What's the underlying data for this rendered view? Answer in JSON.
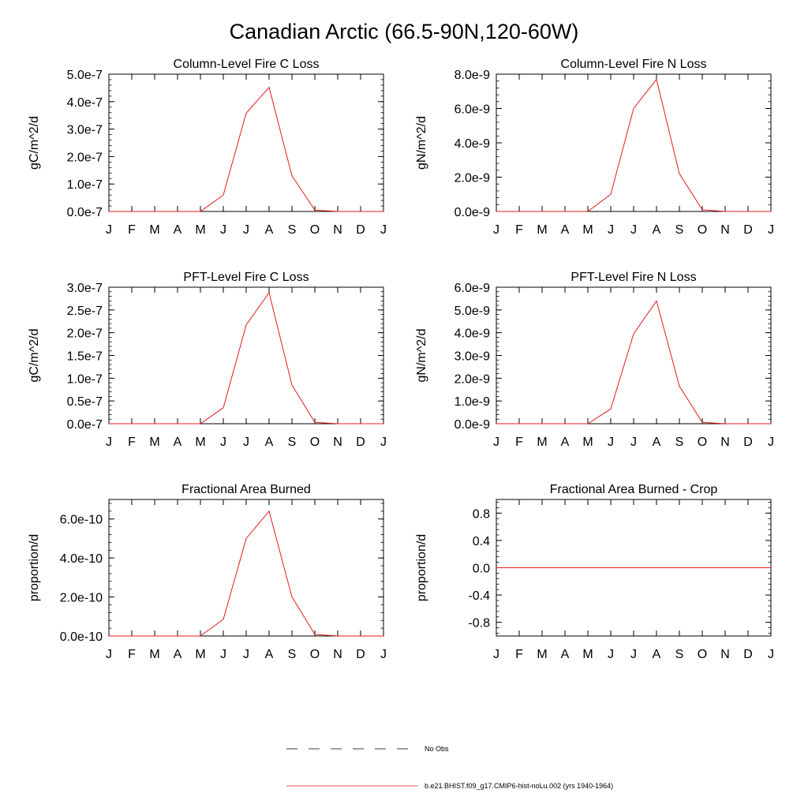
{
  "figure_title": "Canadian Arctic (66.5-90N,120-60W)",
  "legend": {
    "items": [
      {
        "label": "No Obs",
        "style": "dashed",
        "color": "#000000"
      },
      {
        "label": "b.e21.BHIST.f09_g17.CMIP6-hist-noLu.002 (yrs 1940-1964)",
        "style": "solid",
        "color": "#e31a1c"
      }
    ]
  },
  "chart_data": [
    {
      "type": "line",
      "title": "Column-Level Fire C Loss",
      "ylabel": "gC/m^2/d",
      "categories": [
        "J",
        "F",
        "M",
        "A",
        "M",
        "J",
        "J",
        "A",
        "S",
        "O",
        "N",
        "D",
        "J"
      ],
      "ylim": [
        0,
        5e-07
      ],
      "yticks": [
        0,
        1e-07,
        2e-07,
        3e-07,
        4e-07,
        5e-07
      ],
      "ytick_labels": [
        "0.0e-7",
        "1.0e-7",
        "2.0e-7",
        "3.0e-7",
        "4.0e-7",
        "5.0e-7"
      ],
      "series": [
        {
          "color": "#e31a1c",
          "values": [
            0,
            0,
            0,
            0,
            0,
            6e-08,
            3.58e-07,
            4.52e-07,
            1.3e-07,
            5e-09,
            0,
            0,
            0
          ]
        }
      ]
    },
    {
      "type": "line",
      "title": "Column-Level Fire N Loss",
      "ylabel": "gN/m^2/d",
      "categories": [
        "J",
        "F",
        "M",
        "A",
        "M",
        "J",
        "J",
        "A",
        "S",
        "O",
        "N",
        "D",
        "J"
      ],
      "ylim": [
        0,
        8e-09
      ],
      "yticks": [
        0,
        2e-09,
        4e-09,
        6e-09,
        8e-09
      ],
      "ytick_labels": [
        "0.0e-9",
        "2.0e-9",
        "4.0e-9",
        "6.0e-9",
        "8.0e-9"
      ],
      "series": [
        {
          "color": "#e31a1c",
          "values": [
            0,
            0,
            0,
            0,
            0,
            1e-09,
            6e-09,
            7.7e-09,
            2.2e-09,
            1e-10,
            0,
            0,
            0
          ]
        }
      ]
    },
    {
      "type": "line",
      "title": "PFT-Level Fire C Loss",
      "ylabel": "gC/m^2/d",
      "categories": [
        "J",
        "F",
        "M",
        "A",
        "M",
        "J",
        "J",
        "A",
        "S",
        "O",
        "N",
        "D",
        "J"
      ],
      "ylim": [
        0,
        3e-07
      ],
      "yticks": [
        0,
        5e-08,
        1e-07,
        1.5e-07,
        2e-07,
        2.5e-07,
        3e-07
      ],
      "ytick_labels": [
        "0.0e-7",
        "0.5e-7",
        "1.0e-7",
        "1.5e-7",
        "2.0e-7",
        "2.5e-7",
        "3.0e-7"
      ],
      "series": [
        {
          "color": "#e31a1c",
          "values": [
            0,
            0,
            0,
            0,
            0,
            3.5e-08,
            2.17e-07,
            2.88e-07,
            8.5e-08,
            3e-09,
            0,
            0,
            0
          ]
        }
      ]
    },
    {
      "type": "line",
      "title": "PFT-Level Fire N Loss",
      "ylabel": "gN/m^2/d",
      "categories": [
        "J",
        "F",
        "M",
        "A",
        "M",
        "J",
        "J",
        "A",
        "S",
        "O",
        "N",
        "D",
        "J"
      ],
      "ylim": [
        0,
        6e-09
      ],
      "yticks": [
        0,
        1e-09,
        2e-09,
        3e-09,
        4e-09,
        5e-09,
        6e-09
      ],
      "ytick_labels": [
        "0.0e-9",
        "1.0e-9",
        "2.0e-9",
        "3.0e-9",
        "4.0e-9",
        "5.0e-9",
        "6.0e-9"
      ],
      "series": [
        {
          "color": "#e31a1c",
          "values": [
            0,
            0,
            0,
            0,
            0,
            6.5e-10,
            3.95e-09,
            5.4e-09,
            1.65e-09,
            6e-11,
            0,
            0,
            0
          ]
        }
      ]
    },
    {
      "type": "line",
      "title": "Fractional Area Burned",
      "ylabel": "proportion/d",
      "categories": [
        "J",
        "F",
        "M",
        "A",
        "M",
        "J",
        "J",
        "A",
        "S",
        "O",
        "N",
        "D",
        "J"
      ],
      "ylim": [
        0,
        7e-10
      ],
      "yticks": [
        0,
        2e-10,
        4e-10,
        6e-10
      ],
      "ytick_labels": [
        "0.0e-10",
        "2.0e-10",
        "4.0e-10",
        "6.0e-10"
      ],
      "series": [
        {
          "color": "#e31a1c",
          "values": [
            0,
            0,
            0,
            0,
            0,
            8.5e-11,
            5e-10,
            6.4e-10,
            2e-10,
            8e-12,
            0,
            0,
            0
          ]
        }
      ]
    },
    {
      "type": "line",
      "title": "Fractional Area Burned - Crop",
      "ylabel": "proportion/d",
      "categories": [
        "J",
        "F",
        "M",
        "A",
        "M",
        "J",
        "J",
        "A",
        "S",
        "O",
        "N",
        "D",
        "J"
      ],
      "ylim": [
        -1.0,
        1.0
      ],
      "yticks": [
        -0.8,
        -0.4,
        0.0,
        0.4,
        0.8
      ],
      "ytick_labels": [
        "-0.8",
        "-0.4",
        "0.0",
        "0.4",
        "0.8"
      ],
      "series": [
        {
          "color": "#e31a1c",
          "values": [
            0,
            0,
            0,
            0,
            0,
            0,
            0,
            0,
            0,
            0,
            0,
            0,
            0
          ]
        }
      ]
    }
  ]
}
